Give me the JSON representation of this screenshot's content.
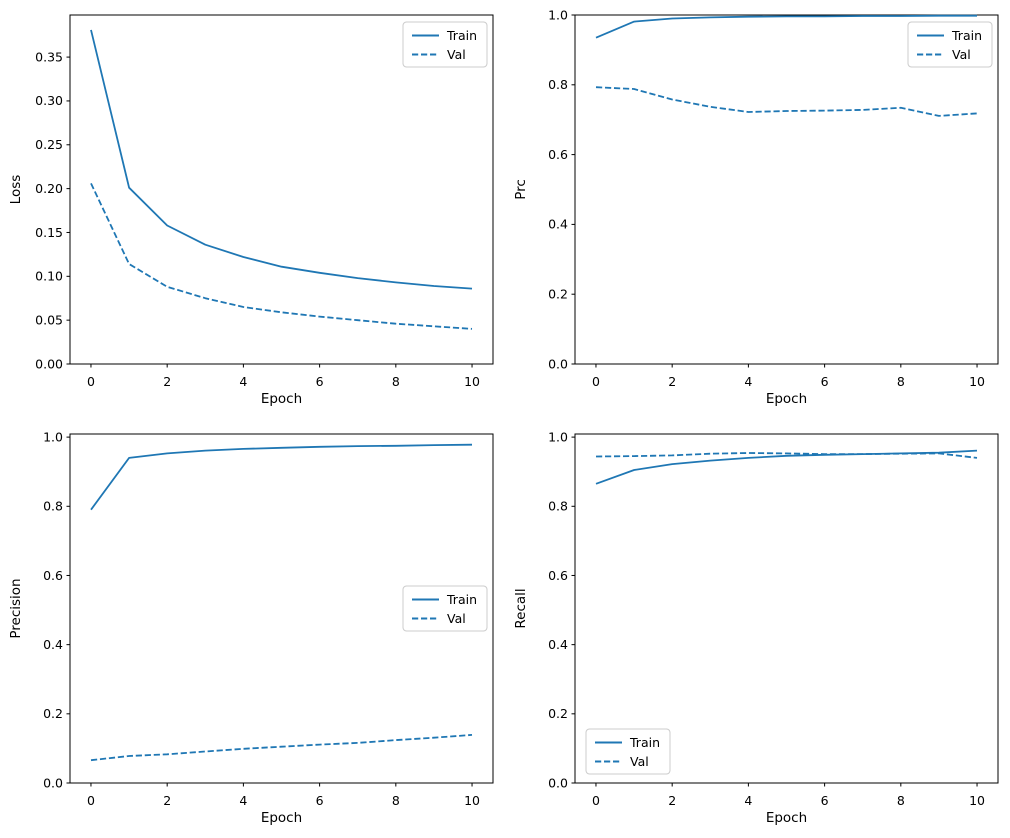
{
  "figure": {
    "background": "#ffffff",
    "line_color": "#1f77b4",
    "spine_color": "#000000",
    "legend_border_color": "#cccccc",
    "legend_labels": [
      "Train",
      "Val"
    ]
  },
  "chart_data": [
    {
      "type": "line",
      "title": "",
      "xlabel": "Epoch",
      "ylabel": "Loss",
      "x": [
        0,
        1,
        2,
        3,
        4,
        5,
        6,
        7,
        8,
        9,
        10
      ],
      "xlim": [
        -0.55,
        10.55
      ],
      "ylim": [
        0,
        0.398
      ],
      "xticks": {
        "values": [
          0,
          2,
          4,
          6,
          8,
          10
        ],
        "labels": [
          "0",
          "2",
          "4",
          "6",
          "8",
          "10"
        ]
      },
      "yticks": {
        "values": [
          0.0,
          0.05,
          0.1,
          0.15,
          0.2,
          0.25,
          0.3,
          0.35
        ],
        "labels": [
          "0.00",
          "0.05",
          "0.10",
          "0.15",
          "0.20",
          "0.25",
          "0.30",
          "0.35"
        ]
      },
      "legend_loc": "upper-right",
      "grid": false,
      "series": [
        {
          "name": "Train",
          "style": "solid",
          "values": [
            0.381,
            0.201,
            0.158,
            0.136,
            0.122,
            0.111,
            0.104,
            0.098,
            0.093,
            0.089,
            0.086
          ]
        },
        {
          "name": "Val",
          "style": "dashed",
          "values": [
            0.206,
            0.114,
            0.088,
            0.075,
            0.065,
            0.059,
            0.054,
            0.05,
            0.046,
            0.043,
            0.04
          ]
        }
      ]
    },
    {
      "type": "line",
      "title": "",
      "xlabel": "Epoch",
      "ylabel": "Prc",
      "x": [
        0,
        1,
        2,
        3,
        4,
        5,
        6,
        7,
        8,
        9,
        10
      ],
      "xlim": [
        -0.55,
        10.55
      ],
      "ylim": [
        0,
        1.0
      ],
      "xticks": {
        "values": [
          0,
          2,
          4,
          6,
          8,
          10
        ],
        "labels": [
          "0",
          "2",
          "4",
          "6",
          "8",
          "10"
        ]
      },
      "yticks": {
        "values": [
          0.0,
          0.2,
          0.4,
          0.6,
          0.8,
          1.0
        ],
        "labels": [
          "0.0",
          "0.2",
          "0.4",
          "0.6",
          "0.8",
          "1.0"
        ]
      },
      "legend_loc": "upper-right",
      "grid": false,
      "series": [
        {
          "name": "Train",
          "style": "solid",
          "values": [
            0.935,
            0.981,
            0.99,
            0.993,
            0.995,
            0.996,
            0.996,
            0.997,
            0.997,
            0.998,
            0.998
          ]
        },
        {
          "name": "Val",
          "style": "dashed",
          "values": [
            0.793,
            0.788,
            0.758,
            0.737,
            0.722,
            0.725,
            0.726,
            0.728,
            0.734,
            0.711,
            0.718
          ]
        }
      ]
    },
    {
      "type": "line",
      "title": "",
      "xlabel": "Epoch",
      "ylabel": "Precision",
      "x": [
        0,
        1,
        2,
        3,
        4,
        5,
        6,
        7,
        8,
        9,
        10
      ],
      "xlim": [
        -0.55,
        10.55
      ],
      "ylim": [
        0,
        1.009
      ],
      "xticks": {
        "values": [
          0,
          2,
          4,
          6,
          8,
          10
        ],
        "labels": [
          "0",
          "2",
          "4",
          "6",
          "8",
          "10"
        ]
      },
      "yticks": {
        "values": [
          0.0,
          0.2,
          0.4,
          0.6,
          0.8,
          1.0
        ],
        "labels": [
          "0.0",
          "0.2",
          "0.4",
          "0.6",
          "0.8",
          "1.0"
        ]
      },
      "legend_loc": "center-right",
      "grid": false,
      "series": [
        {
          "name": "Train",
          "style": "solid",
          "values": [
            0.79,
            0.94,
            0.953,
            0.961,
            0.966,
            0.969,
            0.972,
            0.974,
            0.975,
            0.977,
            0.978
          ]
        },
        {
          "name": "Val",
          "style": "dashed",
          "values": [
            0.066,
            0.078,
            0.083,
            0.091,
            0.099,
            0.105,
            0.111,
            0.116,
            0.124,
            0.131,
            0.139
          ]
        }
      ]
    },
    {
      "type": "line",
      "title": "",
      "xlabel": "Epoch",
      "ylabel": "Recall",
      "x": [
        0,
        1,
        2,
        3,
        4,
        5,
        6,
        7,
        8,
        9,
        10
      ],
      "xlim": [
        -0.55,
        10.55
      ],
      "ylim": [
        0,
        1.009
      ],
      "xticks": {
        "values": [
          0,
          2,
          4,
          6,
          8,
          10
        ],
        "labels": [
          "0",
          "2",
          "4",
          "6",
          "8",
          "10"
        ]
      },
      "yticks": {
        "values": [
          0.0,
          0.2,
          0.4,
          0.6,
          0.8,
          1.0
        ],
        "labels": [
          "0.0",
          "0.2",
          "0.4",
          "0.6",
          "0.8",
          "1.0"
        ]
      },
      "legend_loc": "lower-left",
      "grid": false,
      "series": [
        {
          "name": "Train",
          "style": "solid",
          "values": [
            0.865,
            0.905,
            0.922,
            0.932,
            0.94,
            0.946,
            0.949,
            0.951,
            0.953,
            0.955,
            0.961
          ]
        },
        {
          "name": "Val",
          "style": "dashed",
          "values": [
            0.944,
            0.945,
            0.947,
            0.952,
            0.954,
            0.953,
            0.951,
            0.951,
            0.952,
            0.953,
            0.94
          ]
        }
      ]
    }
  ]
}
